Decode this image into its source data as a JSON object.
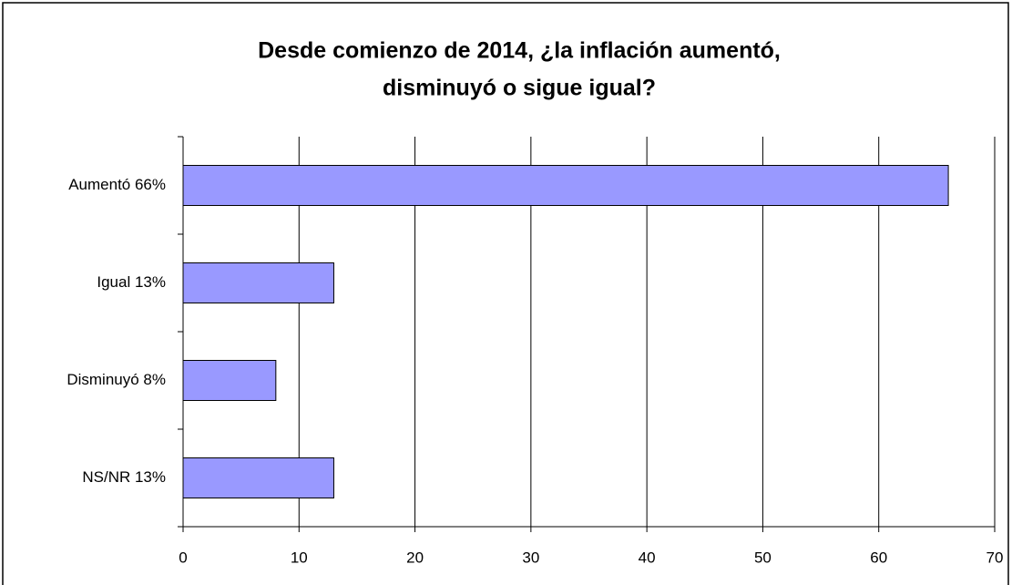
{
  "chart_data": {
    "type": "barh",
    "title": [
      "Desde comienzo de 2014, ¿la inflación aumentó,",
      "disminuyó o sigue igual?"
    ],
    "categories": [
      "Aumentó 66%",
      "Igual 13%",
      "Disminuyó 8%",
      "NS/NR 13%"
    ],
    "values": [
      66,
      13,
      8,
      13
    ],
    "color": "#9999ff",
    "xlim": [
      0,
      70
    ],
    "xticks": [
      0,
      10,
      20,
      30,
      40,
      50,
      60,
      70
    ],
    "grid": true
  }
}
